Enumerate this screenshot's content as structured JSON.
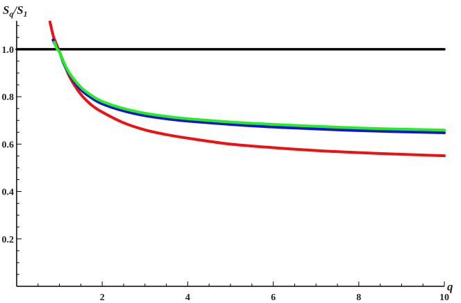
{
  "chart_data": {
    "type": "line",
    "title": "",
    "xlabel": "q",
    "ylabel": {
      "base": "S",
      "num_sub": "q",
      "sep": "/",
      "den_sub": "1"
    },
    "xlim": [
      0,
      10
    ],
    "ylim": [
      0,
      1.12
    ],
    "grid": false,
    "x_ticks": [
      2,
      4,
      6,
      8,
      10
    ],
    "x_tick_labels": [
      "2",
      "4",
      "6",
      "8",
      "10"
    ],
    "y_ticks": [
      0.2,
      0.4,
      0.6,
      0.8,
      1.0
    ],
    "y_tick_labels": [
      "0.2",
      "0.4",
      "0.6",
      "0.8",
      "1.0"
    ],
    "series": [
      {
        "color": "#000000",
        "x": [
          0,
          10
        ],
        "y": [
          1.0,
          1.0
        ]
      },
      {
        "color": "#ee1111",
        "x": [
          0.78,
          0.85,
          0.9,
          1.0,
          1.1,
          1.25,
          1.5,
          1.75,
          2.0,
          2.5,
          3.0,
          3.5,
          4.0,
          5.0,
          6.0,
          7.0,
          8.0,
          9.0,
          10.0
        ],
        "y": [
          1.115,
          1.06,
          1.035,
          0.99,
          0.945,
          0.88,
          0.81,
          0.765,
          0.735,
          0.69,
          0.66,
          0.64,
          0.625,
          0.6,
          0.585,
          0.573,
          0.564,
          0.557,
          0.551
        ]
      },
      {
        "color": "#1111dd",
        "x": [
          0.85,
          0.9,
          1.0,
          1.1,
          1.25,
          1.5,
          1.75,
          2.0,
          2.5,
          3.0,
          3.5,
          4.0,
          5.0,
          6.0,
          7.0,
          8.0,
          9.0,
          10.0
        ],
        "y": [
          1.04,
          1.02,
          0.99,
          0.94,
          0.89,
          0.83,
          0.795,
          0.77,
          0.74,
          0.72,
          0.707,
          0.697,
          0.683,
          0.672,
          0.664,
          0.657,
          0.652,
          0.648
        ]
      },
      {
        "color": "#22ee22",
        "x": [
          0.88,
          0.95,
          1.0,
          1.1,
          1.25,
          1.5,
          1.75,
          2.0,
          2.5,
          3.0,
          3.5,
          4.0,
          5.0,
          6.0,
          7.0,
          8.0,
          9.0,
          10.0
        ],
        "y": [
          1.03,
          1.0,
          0.99,
          0.945,
          0.895,
          0.84,
          0.805,
          0.78,
          0.75,
          0.73,
          0.717,
          0.707,
          0.693,
          0.683,
          0.675,
          0.668,
          0.663,
          0.659
        ]
      }
    ]
  }
}
